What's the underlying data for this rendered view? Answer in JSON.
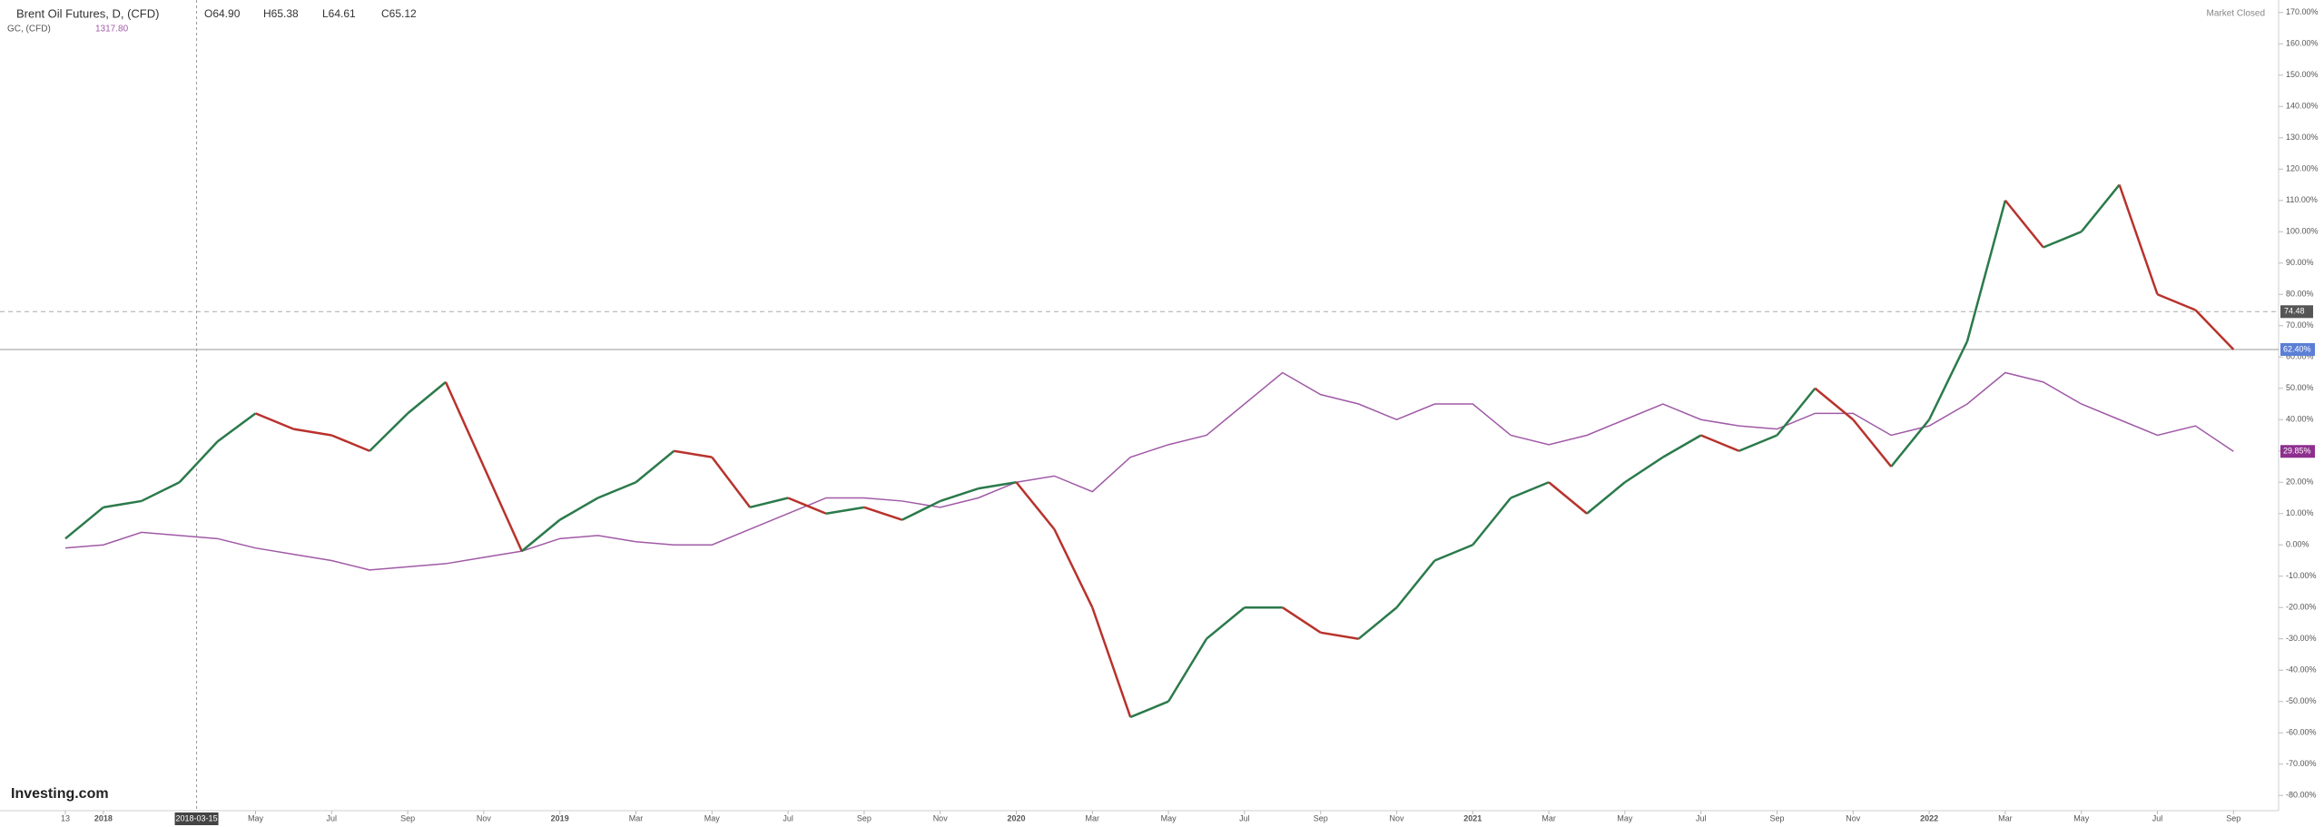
{
  "chart_data": {
    "type": "line",
    "status": "Market Closed",
    "brand": "Investing.com",
    "crosshair_label": "2018-03-15",
    "categories": [
      "13",
      "2018",
      null,
      null,
      null,
      "May",
      null,
      "Jul",
      null,
      "Sep",
      null,
      "Nov",
      null,
      "2019",
      null,
      "Mar",
      null,
      "May",
      null,
      "Jul",
      null,
      "Sep",
      null,
      "Nov",
      null,
      "2020",
      null,
      "Mar",
      null,
      "May",
      null,
      "Jul",
      null,
      "Sep",
      null,
      "Nov",
      null,
      "2021",
      null,
      "Mar",
      null,
      "May",
      null,
      "Jul",
      null,
      "Sep",
      null,
      "Nov",
      null,
      "2022",
      null,
      "Mar",
      null,
      "May",
      null,
      "Jul",
      null,
      "Sep"
    ],
    "series": [
      {
        "name": "Brent Oil Futures, D, (CFD)",
        "header_values": [
          "O64.90",
          "H65.38",
          "L64.61",
          "C65.12"
        ],
        "up_color": "#2b7a4b",
        "down_color": "#b8322c",
        "last_label": "62.40%",
        "label_color": "#5b7fd6",
        "values": [
          2,
          12,
          14,
          20,
          33,
          42,
          37,
          35,
          30,
          42,
          52,
          25,
          -2,
          8,
          15,
          20,
          30,
          28,
          12,
          15,
          10,
          12,
          8,
          14,
          18,
          20,
          5,
          -20,
          -55,
          -50,
          -30,
          -20,
          -20,
          -28,
          -30,
          -20,
          -5,
          0,
          15,
          20,
          10,
          20,
          28,
          35,
          30,
          35,
          50,
          40,
          25,
          40,
          65,
          110,
          95,
          100,
          115,
          80,
          75,
          62.4
        ]
      },
      {
        "name": "GC, (CFD)",
        "header_values": [
          "1317.80"
        ],
        "color": "#a05aa6",
        "last_label": "29.85%",
        "label_color": "#8e2f8e",
        "values": [
          -1,
          0,
          4,
          3,
          2,
          -1,
          -3,
          -5,
          -8,
          -7,
          -6,
          -4,
          -2,
          2,
          3,
          1,
          0,
          0,
          5,
          10,
          15,
          15,
          14,
          12,
          15,
          20,
          22,
          17,
          28,
          32,
          35,
          45,
          55,
          48,
          45,
          40,
          45,
          45,
          35,
          32,
          35,
          40,
          45,
          40,
          38,
          37,
          42,
          42,
          35,
          38,
          45,
          55,
          52,
          45,
          40,
          35,
          38,
          29.85
        ]
      }
    ],
    "price_lines": [
      {
        "value": 74.48,
        "label": "74.48"
      }
    ],
    "ylim": [
      -84,
      174
    ],
    "yticks": [
      {
        "value": 170,
        "label": "170.00%"
      },
      {
        "value": 160,
        "label": "160.00%"
      },
      {
        "value": 150,
        "label": "150.00%"
      },
      {
        "value": 140,
        "label": "140.00%"
      },
      {
        "value": 130,
        "label": "130.00%"
      },
      {
        "value": 120,
        "label": "120.00%"
      },
      {
        "value": 110,
        "label": "110.00%"
      },
      {
        "value": 100,
        "label": "100.00%"
      },
      {
        "value": 90,
        "label": "90.00%"
      },
      {
        "value": 80,
        "label": "80.00%"
      },
      {
        "value": 70,
        "label": "70.00%"
      },
      {
        "value": 60,
        "label": "60.00%"
      },
      {
        "value": 50,
        "label": "50.00%"
      },
      {
        "value": 40,
        "label": "40.00%"
      },
      {
        "value": 30,
        "label": "30.00%"
      },
      {
        "value": 20,
        "label": "20.00%"
      },
      {
        "value": 10,
        "label": "10.00%"
      },
      {
        "value": 0,
        "label": "0.00%"
      },
      {
        "value": -10,
        "label": "-10.00%"
      },
      {
        "value": -20,
        "label": "-20.00%"
      },
      {
        "value": -30,
        "label": "-30.00%"
      },
      {
        "value": -40,
        "label": "-40.00%"
      },
      {
        "value": -50,
        "label": "-50.00%"
      },
      {
        "value": -60,
        "label": "-60.00%"
      },
      {
        "value": -70,
        "label": "-70.00%"
      },
      {
        "value": -80,
        "label": "-80.00%"
      }
    ]
  }
}
